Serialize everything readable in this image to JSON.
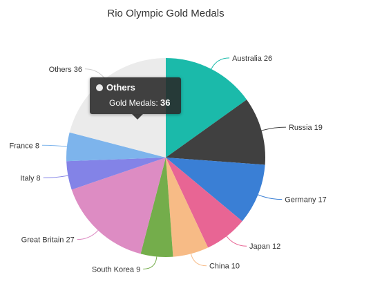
{
  "chart_data": {
    "type": "pie",
    "title": "Rio Olympic Gold Medals",
    "slices": [
      {
        "label": "Australia",
        "value": 26,
        "color": "#1bbaaa"
      },
      {
        "label": "Russia",
        "value": 19,
        "color": "#404040"
      },
      {
        "label": "Germany",
        "value": 17,
        "color": "#3a7fd5"
      },
      {
        "label": "Japan",
        "value": 12,
        "color": "#e86594"
      },
      {
        "label": "China",
        "value": 10,
        "color": "#f7bb86"
      },
      {
        "label": "South Korea",
        "value": 9,
        "color": "#74ad4b"
      },
      {
        "label": "Great Britain",
        "value": 27,
        "color": "#dd8cc3"
      },
      {
        "label": "Italy",
        "value": 8,
        "color": "#8383e7"
      },
      {
        "label": "France",
        "value": 8,
        "color": "#7db4ec"
      },
      {
        "label": "Others",
        "value": 36,
        "color": "#ebebeb"
      }
    ],
    "start_angle_deg": -90,
    "direction": "clockwise"
  },
  "tooltip": {
    "series": "Others",
    "label": "Gold Medals:",
    "value": "36",
    "dot_color": "#ebebeb"
  }
}
